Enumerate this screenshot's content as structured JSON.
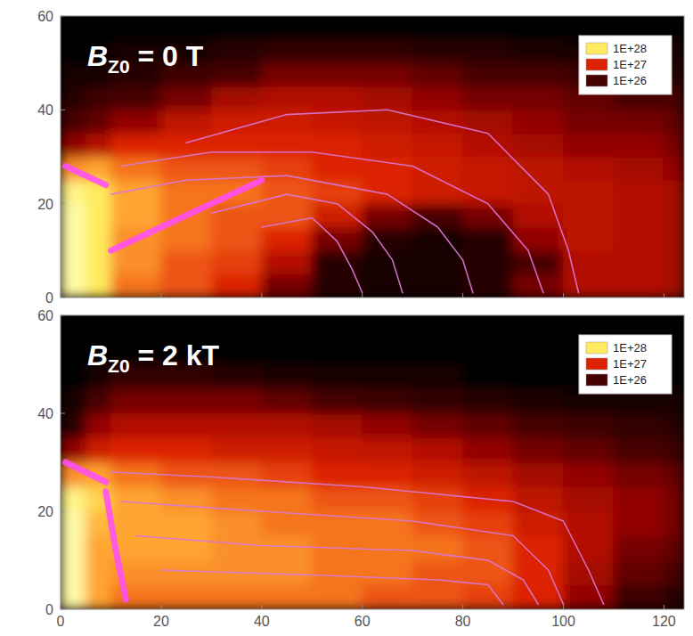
{
  "chart_data": [
    {
      "type": "heatmap",
      "title": "BZ0 = 0 T",
      "tick_labels": "y",
      "xlim": [
        0,
        124
      ],
      "ylim": [
        0,
        60
      ],
      "xticks": [
        0,
        20,
        40,
        60,
        80,
        100,
        120
      ],
      "yticks": [
        0,
        20,
        40,
        60
      ],
      "x_edges": [
        0,
        5,
        10,
        20,
        30,
        40,
        50,
        60,
        70,
        80,
        90,
        100,
        110,
        120,
        124
      ],
      "y_edges": [
        0,
        5,
        10,
        15,
        20,
        25,
        30,
        35,
        40,
        45,
        50,
        55,
        60
      ],
      "cells": [
        [
          2e+28,
          1e+28,
          3e+27,
          2e+27,
          1e+27,
          2e+26,
          5e+25,
          3e+25,
          3e+25,
          5e+25,
          2e+26,
          5e+26,
          5e+26,
          4e+26
        ],
        [
          2e+28,
          1e+28,
          4e+27,
          2e+27,
          1.5e+27,
          5e+26,
          5e+25,
          3e+25,
          3e+25,
          5e+25,
          1e+26,
          5e+26,
          5e+26,
          4e+26
        ],
        [
          2e+28,
          1e+28,
          4e+27,
          3e+27,
          2e+27,
          1e+27,
          2e+26,
          5e+25,
          3e+25,
          5e+25,
          3e+26,
          6e+26,
          5e+26,
          4e+26
        ],
        [
          2e+28,
          1e+28,
          5e+27,
          3e+27,
          2e+27,
          2e+27,
          8e+26,
          2e+26,
          1e+26,
          2e+26,
          5e+26,
          6e+26,
          5e+26,
          4e+26
        ],
        [
          1.5e+28,
          1e+28,
          5e+27,
          3e+27,
          3e+27,
          2e+27,
          1.5e+27,
          1e+27,
          8e+26,
          7e+26,
          6e+26,
          6e+26,
          5e+26,
          4e+26
        ],
        [
          4e+27,
          5e+27,
          3e+27,
          2e+27,
          2e+27,
          1.5e+27,
          1e+27,
          1e+27,
          8e+26,
          7e+26,
          6e+26,
          5e+26,
          4e+26,
          3e+26
        ],
        [
          3e+26,
          5e+26,
          1e+27,
          1e+27,
          1e+27,
          1e+27,
          1e+27,
          8e+26,
          7e+26,
          5e+26,
          4e+26,
          3e+26,
          3e+26,
          2e+26
        ],
        [
          1e+26,
          1.5e+26,
          3e+26,
          6e+26,
          8e+26,
          8e+26,
          7e+26,
          6e+26,
          5e+26,
          4e+26,
          3e+26,
          2e+26,
          2e+26,
          1.5e+26
        ],
        [
          5e+25,
          8e+25,
          1e+26,
          2e+26,
          4e+26,
          5e+26,
          5e+26,
          4e+26,
          3e+26,
          2e+26,
          2e+26,
          1.5e+26,
          1e+26,
          1e+26
        ],
        [
          3e+25,
          3e+25,
          5e+25,
          8e+25,
          1e+26,
          2e+26,
          2e+26,
          2e+26,
          1.5e+26,
          1e+26,
          1e+26,
          8e+25,
          6e+25,
          5e+25
        ],
        [
          2e+25,
          2e+25,
          3e+25,
          3e+25,
          5e+25,
          6e+25,
          6e+25,
          6e+25,
          5e+25,
          5e+25,
          4e+25,
          3e+25,
          3e+25,
          3e+25
        ],
        [
          2e+25,
          2e+25,
          2e+25,
          2e+25,
          2e+25,
          2e+25,
          2e+25,
          2e+25,
          2e+25,
          2e+25,
          2e+25,
          2e+25,
          2e+25,
          2e+25
        ]
      ],
      "color_range": [
        1e+26,
        1e+28
      ],
      "color_ticks": [
        {
          "value": 1e+28,
          "label": "1E+28"
        },
        {
          "value": 1e+27,
          "label": "1E+27"
        },
        {
          "value": 1e+26,
          "label": "1E+26"
        }
      ],
      "contours": [
        {
          "color": "#d878d8",
          "x": [
            25,
            45,
            65,
            85,
            97,
            101,
            103
          ],
          "y": [
            33,
            39,
            40,
            35,
            22,
            10,
            1
          ]
        },
        {
          "color": "#d878d8",
          "x": [
            12,
            30,
            50,
            70,
            85,
            93,
            96
          ],
          "y": [
            28,
            31,
            31,
            28,
            20,
            10,
            1
          ]
        },
        {
          "color": "#d878d8",
          "x": [
            10,
            25,
            45,
            65,
            75,
            80,
            82
          ],
          "y": [
            22,
            25,
            26,
            22,
            15,
            8,
            1
          ]
        },
        {
          "color": "#d878d8",
          "x": [
            30,
            45,
            55,
            62,
            66,
            68
          ],
          "y": [
            18,
            22,
            20,
            14,
            8,
            1
          ]
        },
        {
          "color": "#d878d8",
          "x": [
            40,
            50,
            55,
            58,
            60
          ],
          "y": [
            15,
            17,
            12,
            6,
            1
          ]
        }
      ],
      "streaks": [
        {
          "color": "#ff4cff",
          "x": [
            1,
            5,
            9
          ],
          "y": [
            28,
            26,
            24
          ]
        },
        {
          "color": "#ff4cff",
          "x": [
            10,
            20,
            30,
            40
          ],
          "y": [
            10,
            15,
            20,
            25
          ]
        }
      ]
    },
    {
      "type": "heatmap",
      "title": "BZ0 = 2 kT",
      "xlim": [
        0,
        124
      ],
      "ylim": [
        0,
        60
      ],
      "xticks": [
        0,
        20,
        40,
        60,
        80,
        100,
        120
      ],
      "yticks": [
        0,
        20,
        40,
        60
      ],
      "x_edges": [
        0,
        5,
        10,
        20,
        30,
        40,
        50,
        60,
        70,
        80,
        90,
        100,
        110,
        120,
        124
      ],
      "y_edges": [
        0,
        5,
        10,
        15,
        20,
        25,
        30,
        35,
        40,
        45,
        50,
        55,
        60
      ],
      "cells": [
        [
          2e+28,
          5e+27,
          3e+27,
          3e+27,
          3e+27,
          3e+27,
          3e+27,
          2e+27,
          2e+27,
          1.5e+27,
          1e+27,
          3e+26,
          8e+25,
          5e+25
        ],
        [
          2e+28,
          5e+27,
          4e+27,
          4e+27,
          4e+27,
          4e+27,
          3e+27,
          3e+27,
          2e+27,
          2e+27,
          1e+27,
          4e+26,
          1.5e+26,
          1e+26
        ],
        [
          2e+28,
          5e+27,
          5e+27,
          5e+27,
          4e+27,
          4e+27,
          3e+27,
          3e+27,
          3e+27,
          2e+27,
          1e+27,
          5e+26,
          2e+26,
          1.5e+26
        ],
        [
          2e+28,
          6e+27,
          5e+27,
          5e+27,
          4e+27,
          3e+27,
          3e+27,
          3e+27,
          2e+27,
          1.5e+27,
          8e+26,
          5e+26,
          3e+26,
          2e+26
        ],
        [
          1.5e+28,
          8e+27,
          5e+27,
          4e+27,
          3e+27,
          3e+27,
          2e+27,
          2e+27,
          1.5e+27,
          1e+27,
          6e+26,
          4e+26,
          3e+26,
          2e+26
        ],
        [
          4e+27,
          5e+27,
          3e+27,
          2e+27,
          2e+27,
          1.5e+27,
          1e+27,
          1e+27,
          8e+26,
          6e+26,
          4e+26,
          3e+26,
          2e+26,
          1.5e+26
        ],
        [
          3e+26,
          8e+26,
          1e+27,
          1e+27,
          8e+26,
          8e+26,
          7e+26,
          6e+26,
          5e+26,
          3e+26,
          2e+26,
          1.5e+26,
          1e+26,
          8e+25
        ],
        [
          5e+25,
          3e+26,
          5e+26,
          5e+26,
          5e+26,
          5e+26,
          4e+26,
          3e+26,
          2e+26,
          1.5e+26,
          1e+26,
          8e+25,
          6e+25,
          5e+25
        ],
        [
          3e+25,
          1e+26,
          2e+26,
          2e+26,
          2e+26,
          1.5e+26,
          1e+26,
          8e+25,
          6e+25,
          5e+25,
          4e+25,
          3e+25,
          3e+25,
          3e+25
        ],
        [
          2e+25,
          3e+25,
          6e+25,
          6e+25,
          5e+25,
          4e+25,
          3e+25,
          3e+25,
          3e+25,
          2e+25,
          2e+25,
          2e+25,
          2e+25,
          2e+25
        ],
        [
          2e+25,
          2e+25,
          2e+25,
          2e+25,
          2e+25,
          2e+25,
          2e+25,
          2e+25,
          2e+25,
          2e+25,
          2e+25,
          2e+25,
          2e+25,
          2e+25
        ],
        [
          2e+25,
          2e+25,
          2e+25,
          2e+25,
          2e+25,
          2e+25,
          2e+25,
          2e+25,
          2e+25,
          2e+25,
          2e+25,
          2e+25,
          2e+25,
          2e+25
        ]
      ],
      "color_range": [
        1e+26,
        1e+28
      ],
      "color_ticks": [
        {
          "value": 1e+28,
          "label": "1E+28"
        },
        {
          "value": 1e+27,
          "label": "1E+27"
        },
        {
          "value": 1e+26,
          "label": "1E+26"
        }
      ],
      "contours": [
        {
          "color": "#d878d8",
          "x": [
            10,
            30,
            60,
            90,
            100,
            105,
            108
          ],
          "y": [
            28,
            27,
            25,
            22,
            18,
            8,
            1
          ]
        },
        {
          "color": "#d878d8",
          "x": [
            12,
            40,
            70,
            90,
            97,
            100
          ],
          "y": [
            22,
            20,
            18,
            15,
            8,
            1
          ]
        },
        {
          "color": "#d878d8",
          "x": [
            15,
            40,
            70,
            85,
            92,
            95
          ],
          "y": [
            15,
            13,
            12,
            10,
            6,
            1
          ]
        },
        {
          "color": "#d878d8",
          "x": [
            20,
            50,
            75,
            85,
            88
          ],
          "y": [
            8,
            7,
            6,
            5,
            1
          ]
        }
      ],
      "streaks": [
        {
          "color": "#ff4cff",
          "x": [
            1,
            5,
            9
          ],
          "y": [
            30,
            28,
            26
          ]
        },
        {
          "color": "#ff4cff",
          "x": [
            9,
            11,
            13
          ],
          "y": [
            24,
            12,
            2
          ]
        }
      ]
    }
  ]
}
